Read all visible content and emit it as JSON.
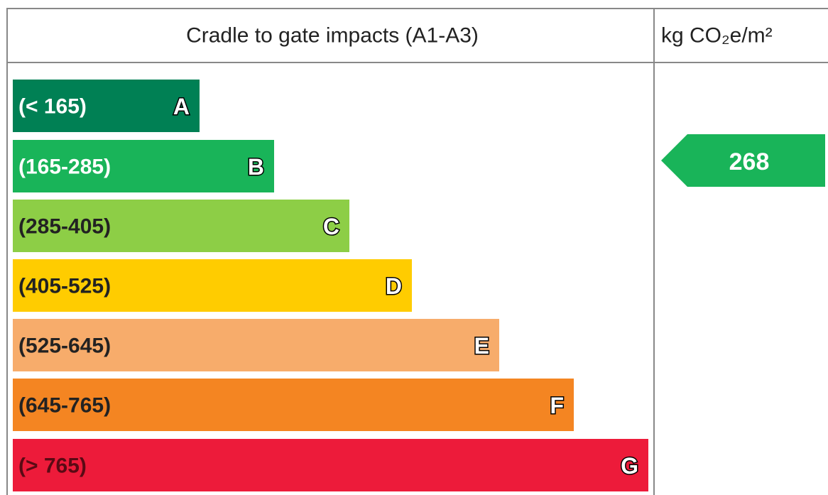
{
  "header": {
    "title": "Cradle to gate impacts (A1-A3)",
    "unit": "kg CO₂e/m²"
  },
  "bands": [
    {
      "range": "(< 165)",
      "letter": "A",
      "color": "#008054",
      "text_color": "#ffffff"
    },
    {
      "range": "(165-285)",
      "letter": "B",
      "color": "#19b459",
      "text_color": "#ffffff"
    },
    {
      "range": "(285-405)",
      "letter": "C",
      "color": "#8dce46",
      "text_color": "#222222"
    },
    {
      "range": "(405-525)",
      "letter": "D",
      "color": "#ffcc00",
      "text_color": "#222222"
    },
    {
      "range": "(525-645)",
      "letter": "E",
      "color": "#f7ac6b",
      "text_color": "#222222"
    },
    {
      "range": "(645-765)",
      "letter": "F",
      "color": "#f48522",
      "text_color": "#222222"
    },
    {
      "range": "(> 765)",
      "letter": "G",
      "color": "#ed1b3a",
      "text_color": "#5a0a14"
    }
  ],
  "rating": {
    "value": "268",
    "color": "#19b459"
  }
}
